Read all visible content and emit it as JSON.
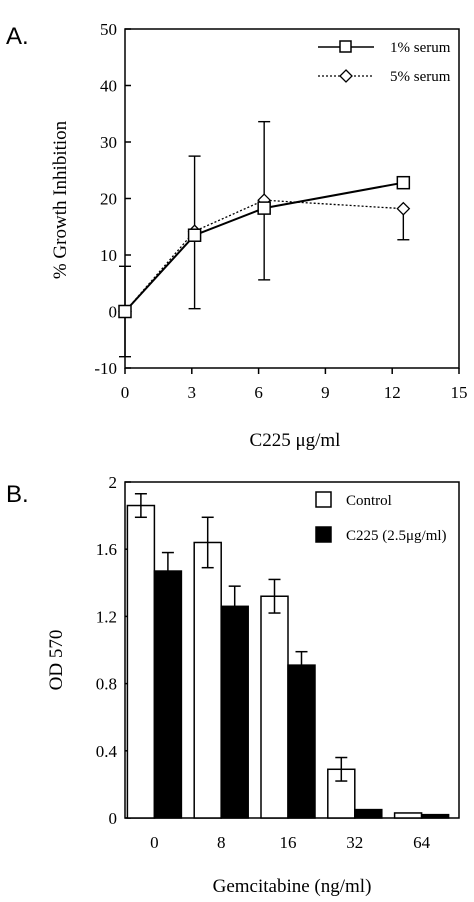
{
  "chart_data": [
    {
      "panel": "A.",
      "type": "line",
      "xlabel": "C225 μg/ml",
      "ylabel": "% Growth Inhibition",
      "xlim": [
        0,
        15
      ],
      "ylim": [
        -10,
        50
      ],
      "x_ticks": [
        0,
        3,
        6,
        9,
        12,
        15
      ],
      "y_ticks": [
        -10,
        0,
        10,
        20,
        30,
        40,
        50
      ],
      "legend_position": "top-right",
      "grid": false,
      "series": [
        {
          "name": "1% serum",
          "marker": "square",
          "line": "solid",
          "x": [
            0,
            3.125,
            6.25,
            12.5
          ],
          "y": [
            0,
            13.5,
            18.3,
            22.8
          ],
          "err_low": [
            8,
            13,
            12.7,
            null
          ],
          "err_high": [
            8,
            14,
            15.3,
            null
          ]
        },
        {
          "name": "5% serum",
          "marker": "diamond",
          "line": "dotted",
          "x": [
            0,
            3.125,
            6.25,
            12.5
          ],
          "y": [
            0,
            14.2,
            19.7,
            18.2
          ],
          "err_low": [
            null,
            null,
            null,
            5.5
          ],
          "err_high": [
            null,
            null,
            null,
            null
          ]
        }
      ]
    },
    {
      "panel": "B.",
      "type": "bar",
      "xlabel": "Gemcitabine (ng/ml)",
      "ylabel": "OD 570",
      "categories": [
        "0",
        "8",
        "16",
        "32",
        "64"
      ],
      "ylim": [
        0,
        2
      ],
      "y_ticks": [
        "0",
        "0.4",
        "0.8",
        "1.2",
        "1.6",
        "2"
      ],
      "legend_position": "top-right",
      "grid": false,
      "series": [
        {
          "name": "Control",
          "fill": "#ffffff",
          "values": [
            1.86,
            1.64,
            1.32,
            0.29,
            0.03
          ],
          "errors": [
            0.07,
            0.15,
            0.1,
            0.07,
            null
          ]
        },
        {
          "name": "C225 (2.5μg/ml)",
          "fill": "#000000",
          "values": [
            1.47,
            1.26,
            0.91,
            0.05,
            0.02
          ],
          "errors": [
            0.11,
            0.12,
            0.08,
            null,
            null
          ]
        }
      ]
    }
  ]
}
